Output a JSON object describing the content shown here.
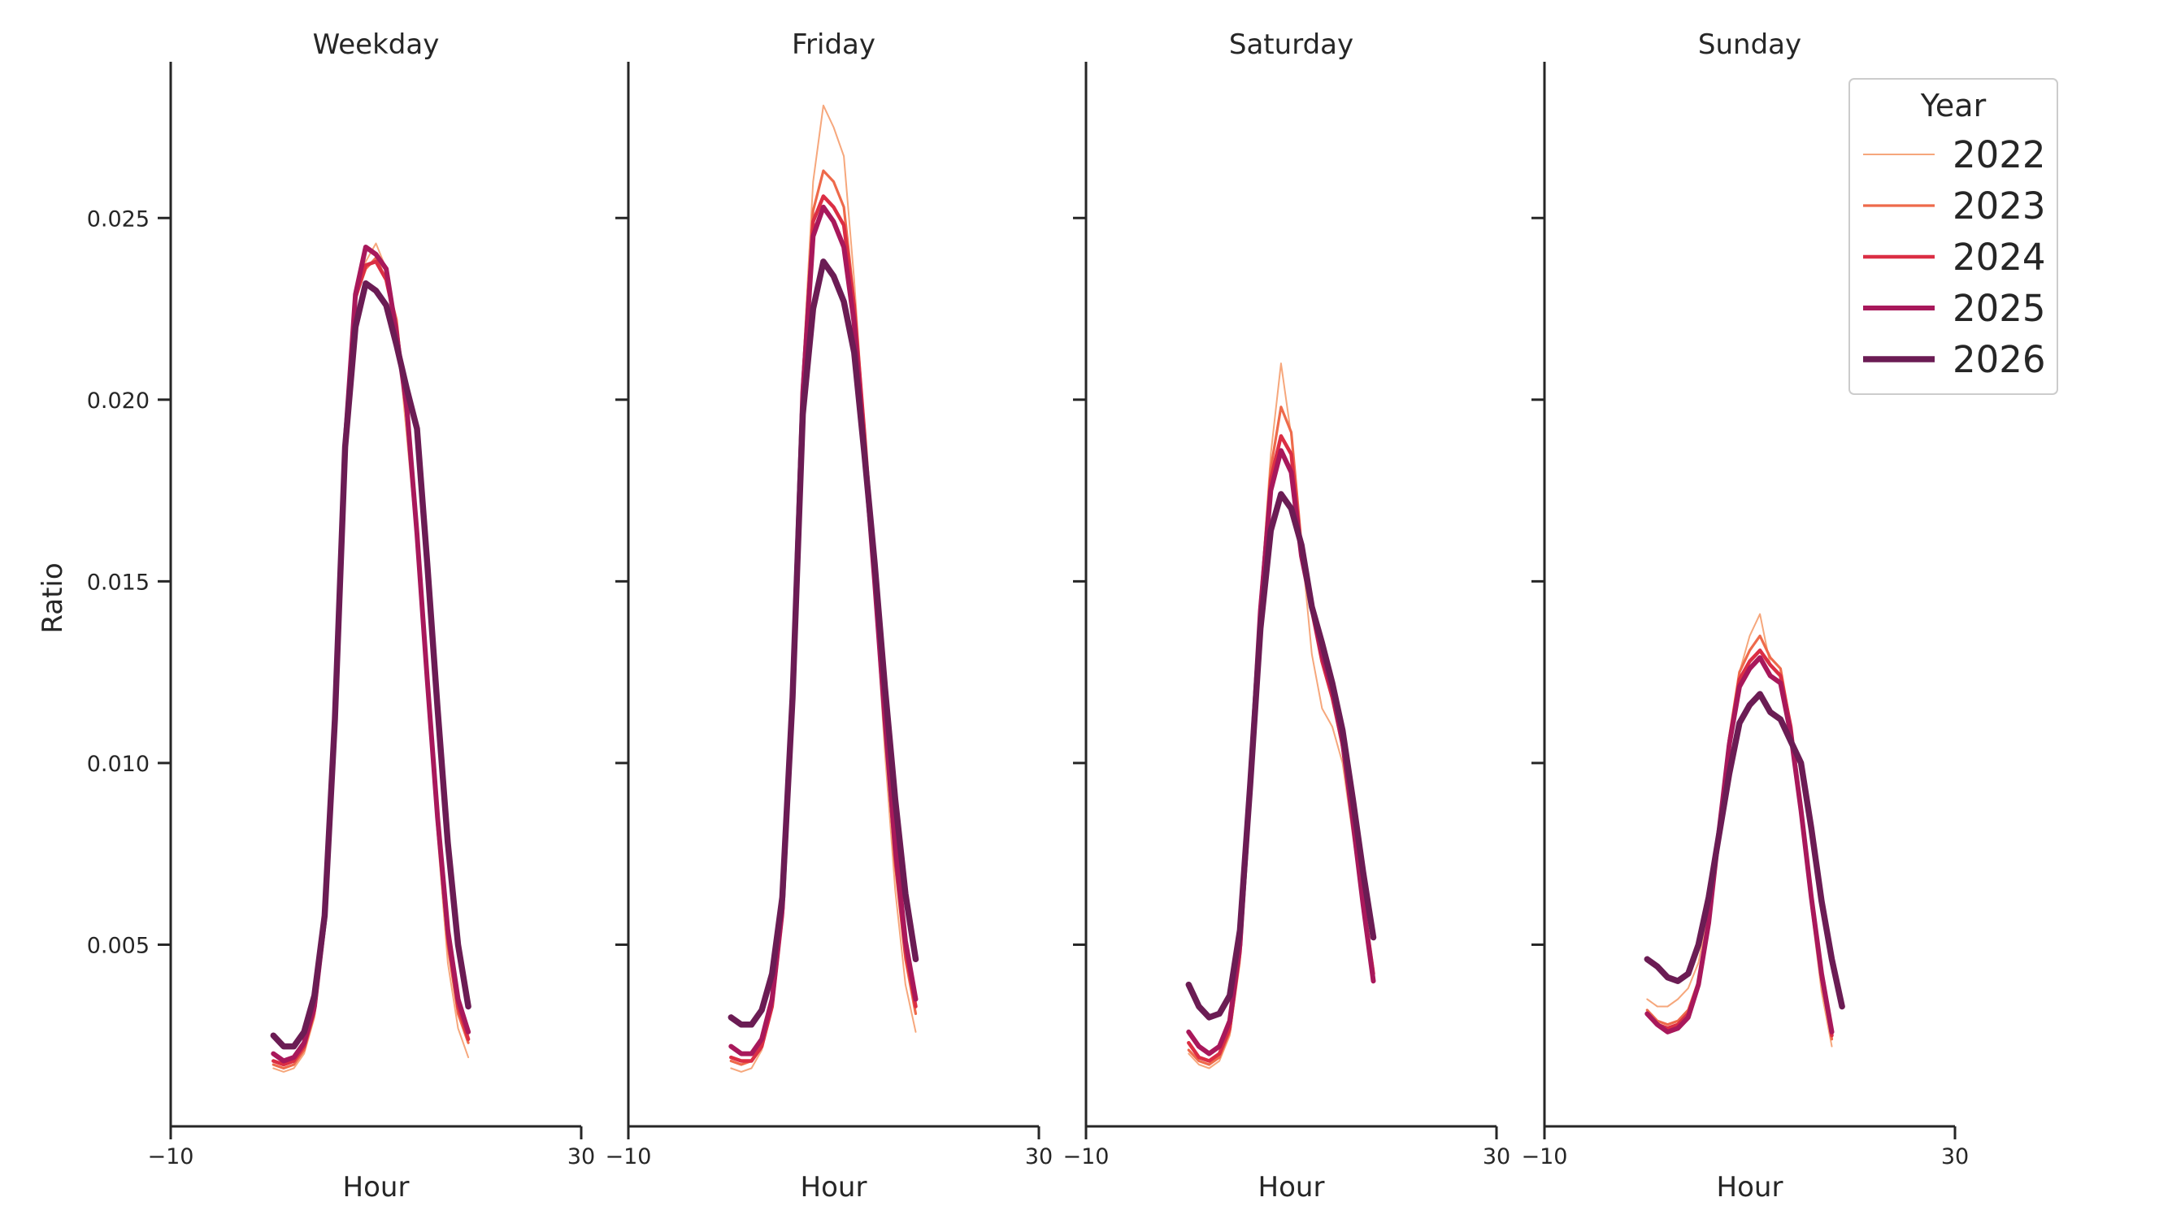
{
  "chart_data": {
    "type": "line",
    "ylabel": "Ratio",
    "xlabel": "Hour",
    "xlim": [
      -10,
      30
    ],
    "ylim": [
      0,
      0.0293
    ],
    "xticks": [
      -10,
      30
    ],
    "xtick_labels": [
      "−10",
      "30"
    ],
    "yticks": [
      0.005,
      0.01,
      0.015,
      0.02,
      0.025
    ],
    "ytick_labels": [
      "0.005",
      "0.010",
      "0.015",
      "0.020",
      "0.025"
    ],
    "legend": {
      "title": "Year",
      "position": "top-right"
    },
    "years": [
      "2022",
      "2023",
      "2024",
      "2025",
      "2026"
    ],
    "colors": [
      "#f6a77c",
      "#ee6a4b",
      "#db2e44",
      "#a8185b",
      "#6b1c54"
    ],
    "hours": [
      0,
      1,
      2,
      3,
      4,
      5,
      6,
      7,
      8,
      9,
      10,
      11,
      12,
      13,
      14,
      15,
      16,
      17,
      18,
      19,
      20,
      21,
      22,
      23
    ],
    "panels": [
      {
        "title": "Weekday",
        "series": [
          {
            "name": "2022",
            "values": [
              0.0016,
              0.0015,
              0.0016,
              0.002,
              0.003,
              0.0055,
              0.011,
              0.019,
              0.023,
              0.0238,
              0.0243,
              0.0236,
              0.022,
              0.019,
              0.016,
              0.012,
              0.008,
              0.0045,
              0.0027,
              0.0019,
              0.0,
              0.0,
              0.0,
              0.0
            ]
          },
          {
            "name": "2023",
            "values": [
              0.0017,
              0.0016,
              0.0017,
              0.0021,
              0.0031,
              0.0055,
              0.011,
              0.0188,
              0.0228,
              0.0236,
              0.0239,
              0.0233,
              0.0222,
              0.0195,
              0.0162,
              0.0122,
              0.0082,
              0.005,
              0.0031,
              0.0023,
              0.0,
              0.0,
              0.0,
              0.0
            ]
          },
          {
            "name": "2024",
            "values": [
              0.0018,
              0.0017,
              0.0018,
              0.0022,
              0.0032,
              0.0056,
              0.0111,
              0.0188,
              0.0228,
              0.0237,
              0.0238,
              0.0233,
              0.022,
              0.0196,
              0.0163,
              0.0123,
              0.0084,
              0.0052,
              0.0033,
              0.0024,
              0.0,
              0.0,
              0.0,
              0.0
            ]
          },
          {
            "name": "2025",
            "values": [
              0.002,
              0.0018,
              0.0019,
              0.0023,
              0.0033,
              0.0057,
              0.0112,
              0.0188,
              0.0229,
              0.0242,
              0.024,
              0.0236,
              0.0218,
              0.0198,
              0.0163,
              0.0123,
              0.0085,
              0.0054,
              0.0035,
              0.0026,
              0.0,
              0.0,
              0.0,
              0.0
            ]
          },
          {
            "name": "2026",
            "values": [
              0.0025,
              0.0022,
              0.0022,
              0.0026,
              0.0036,
              0.0058,
              0.0112,
              0.0187,
              0.022,
              0.0232,
              0.023,
              0.0226,
              0.0215,
              0.0203,
              0.0192,
              0.0155,
              0.0115,
              0.0078,
              0.005,
              0.0033,
              0.0,
              0.0,
              0.0,
              0.0
            ]
          }
        ]
      },
      {
        "title": "Friday",
        "series": [
          {
            "name": "2022",
            "values": [
              0.0016,
              0.0015,
              0.0016,
              0.0021,
              0.0032,
              0.0057,
              0.0118,
              0.0208,
              0.026,
              0.0281,
              0.0275,
              0.0267,
              0.0233,
              0.0192,
              0.0147,
              0.0103,
              0.0065,
              0.0039,
              0.0026,
              0.0,
              0.0,
              0.0,
              0.0,
              0.0
            ]
          },
          {
            "name": "2023",
            "values": [
              0.0018,
              0.0017,
              0.0018,
              0.0022,
              0.0033,
              0.0058,
              0.0118,
              0.0205,
              0.0252,
              0.0263,
              0.026,
              0.0253,
              0.0227,
              0.0192,
              0.0152,
              0.011,
              0.0072,
              0.0046,
              0.0031,
              0.0,
              0.0,
              0.0,
              0.0,
              0.0
            ]
          },
          {
            "name": "2024",
            "values": [
              0.0019,
              0.0018,
              0.0018,
              0.0022,
              0.0033,
              0.0058,
              0.0118,
              0.0204,
              0.0249,
              0.0256,
              0.0253,
              0.0248,
              0.0226,
              0.0191,
              0.0153,
              0.0112,
              0.0074,
              0.0048,
              0.0033,
              0.0,
              0.0,
              0.0,
              0.0,
              0.0
            ]
          },
          {
            "name": "2025",
            "values": [
              0.0022,
              0.002,
              0.002,
              0.0024,
              0.0035,
              0.006,
              0.0119,
              0.0202,
              0.0245,
              0.0253,
              0.0249,
              0.0242,
              0.0221,
              0.0186,
              0.015,
              0.0112,
              0.0077,
              0.0051,
              0.0035,
              0.0,
              0.0,
              0.0,
              0.0,
              0.0
            ]
          },
          {
            "name": "2026",
            "values": [
              0.003,
              0.0028,
              0.0028,
              0.0032,
              0.0042,
              0.0063,
              0.0118,
              0.0196,
              0.0225,
              0.0238,
              0.0234,
              0.0227,
              0.0213,
              0.0185,
              0.0155,
              0.0121,
              0.009,
              0.0064,
              0.0046,
              0.0,
              0.0,
              0.0,
              0.0,
              0.0
            ]
          }
        ]
      },
      {
        "title": "Saturday",
        "series": [
          {
            "name": "2022",
            "values": [
              0.002,
              0.0017,
              0.0016,
              0.0018,
              0.0025,
              0.0045,
              0.009,
              0.0145,
              0.0185,
              0.021,
              0.019,
              0.016,
              0.013,
              0.0115,
              0.011,
              0.01,
              0.008,
              0.006,
              0.0042,
              0.0,
              0.0,
              0.0,
              0.0,
              0.0
            ]
          },
          {
            "name": "2023",
            "values": [
              0.0021,
              0.0018,
              0.0017,
              0.0019,
              0.0026,
              0.0047,
              0.0092,
              0.0143,
              0.0181,
              0.0198,
              0.0191,
              0.016,
              0.0142,
              0.0128,
              0.0118,
              0.0104,
              0.0083,
              0.0062,
              0.0043,
              0.0,
              0.0,
              0.0,
              0.0,
              0.0
            ]
          },
          {
            "name": "2024",
            "values": [
              0.0023,
              0.0019,
              0.0018,
              0.002,
              0.0027,
              0.0048,
              0.0093,
              0.0143,
              0.0178,
              0.019,
              0.0185,
              0.0158,
              0.0142,
              0.0128,
              0.0118,
              0.0105,
              0.0084,
              0.0062,
              0.0042,
              0.0,
              0.0,
              0.0,
              0.0,
              0.0
            ]
          },
          {
            "name": "2025",
            "values": [
              0.0026,
              0.0022,
              0.002,
              0.0022,
              0.0029,
              0.005,
              0.0094,
              0.0142,
              0.0175,
              0.0186,
              0.018,
              0.0157,
              0.0143,
              0.013,
              0.012,
              0.0106,
              0.0084,
              0.0061,
              0.004,
              0.0,
              0.0,
              0.0,
              0.0,
              0.0
            ]
          },
          {
            "name": "2026",
            "values": [
              0.0039,
              0.0033,
              0.003,
              0.0031,
              0.0036,
              0.0054,
              0.0094,
              0.0137,
              0.0164,
              0.0174,
              0.017,
              0.016,
              0.0143,
              0.0133,
              0.0122,
              0.0109,
              0.009,
              0.007,
              0.0052,
              0.0,
              0.0,
              0.0,
              0.0,
              0.0
            ]
          }
        ]
      },
      {
        "title": "Sunday",
        "series": [
          {
            "name": "2022",
            "values": [
              0.0035,
              0.0033,
              0.0033,
              0.0035,
              0.0038,
              0.0045,
              0.006,
              0.0082,
              0.0105,
              0.0125,
              0.0135,
              0.0141,
              0.0127,
              0.0124,
              0.011,
              0.0085,
              0.006,
              0.0037,
              0.0022,
              0.0,
              0.0,
              0.0,
              0.0,
              0.0
            ]
          },
          {
            "name": "2023",
            "values": [
              0.0032,
              0.0029,
              0.0028,
              0.0029,
              0.0032,
              0.004,
              0.0057,
              0.0082,
              0.0107,
              0.0125,
              0.0131,
              0.0135,
              0.0129,
              0.0126,
              0.011,
              0.0086,
              0.0062,
              0.004,
              0.0024,
              0.0,
              0.0,
              0.0,
              0.0,
              0.0
            ]
          },
          {
            "name": "2024",
            "values": [
              0.0031,
              0.0028,
              0.0027,
              0.0028,
              0.0031,
              0.0039,
              0.0056,
              0.0081,
              0.0106,
              0.0123,
              0.0128,
              0.0131,
              0.0127,
              0.0124,
              0.011,
              0.0087,
              0.0063,
              0.0041,
              0.0025,
              0.0,
              0.0,
              0.0,
              0.0,
              0.0
            ]
          },
          {
            "name": "2025",
            "values": [
              0.0031,
              0.0028,
              0.0026,
              0.0027,
              0.003,
              0.0039,
              0.0056,
              0.0081,
              0.0105,
              0.0121,
              0.0126,
              0.0129,
              0.0124,
              0.0122,
              0.0108,
              0.0087,
              0.0063,
              0.0042,
              0.0026,
              0.0,
              0.0,
              0.0,
              0.0,
              0.0
            ]
          },
          {
            "name": "2026",
            "values": [
              0.0046,
              0.0044,
              0.0041,
              0.004,
              0.0042,
              0.005,
              0.0063,
              0.008,
              0.0097,
              0.0111,
              0.0116,
              0.0119,
              0.0114,
              0.0112,
              0.0106,
              0.01,
              0.0082,
              0.0062,
              0.0046,
              0.0033,
              0.0,
              0.0,
              0.0,
              0.0
            ]
          }
        ]
      }
    ]
  }
}
